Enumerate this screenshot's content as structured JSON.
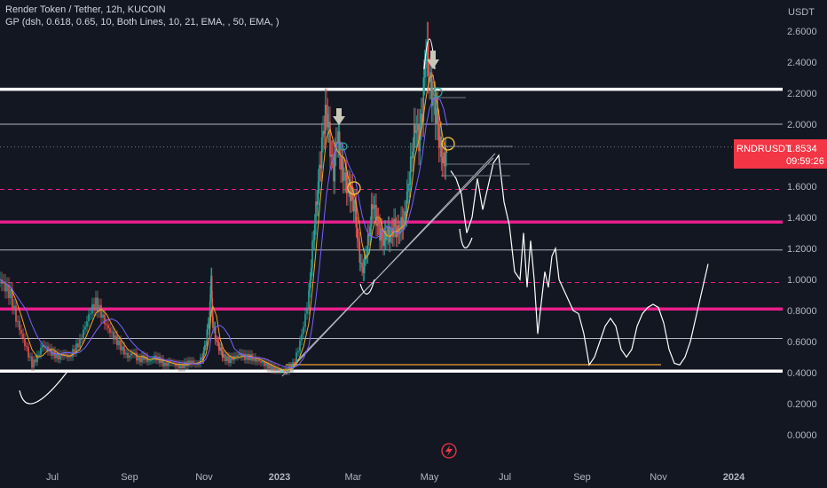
{
  "header": {
    "title": "Render Token / Tether, 12h, KUCOIN",
    "indicator": "GP (dsh, 0.618, 0.65, 10, Both Lines, 10, 21, EMA, , 50, EMA, )"
  },
  "price_axis": {
    "unit": "USDT",
    "ticks": [
      "2.6000",
      "2.4000",
      "2.2000",
      "2.0000",
      "1.8000",
      "1.6000",
      "1.4000",
      "1.2000",
      "1.0000",
      "0.8000",
      "0.6000",
      "0.4000",
      "0.2000",
      "0.0000"
    ]
  },
  "time_axis": {
    "ticks": [
      "Jul",
      "Sep",
      "Nov",
      "2023",
      "Mar",
      "May",
      "Jul",
      "Sep",
      "Nov",
      "2024"
    ]
  },
  "last_price": {
    "symbol": "RNDRUSDT",
    "price": "1.8534",
    "countdown": "09:59:26"
  },
  "colors": {
    "background": "#131722",
    "candle_up": "#26a69a",
    "candle_down": "#ef5350",
    "magenta_line": "#e91e8c",
    "white_line": "#ffffff",
    "price_tag": "#f23645"
  },
  "chart_data": {
    "type": "candlestick",
    "ylim": [
      0,
      2.7
    ],
    "x_ticks": [
      "Jul",
      "Sep",
      "Nov",
      "2023",
      "Mar",
      "May",
      "Jul",
      "Sep",
      "Nov",
      "2024"
    ],
    "horizontal_levels": [
      {
        "value": 2.225,
        "style": "solid",
        "color": "#ffffff",
        "width": "thick"
      },
      {
        "value": 0.41,
        "style": "solid",
        "color": "#ffffff",
        "width": "thick"
      },
      {
        "value": 1.37,
        "style": "solid",
        "color": "#e91e8c",
        "width": "thick"
      },
      {
        "value": 0.81,
        "style": "solid",
        "color": "#e91e8c",
        "width": "thick"
      },
      {
        "value": 1.58,
        "style": "dashed",
        "color": "#e91e8c",
        "width": "thin"
      },
      {
        "value": 0.98,
        "style": "dashed",
        "color": "#e91e8c",
        "width": "thin"
      },
      {
        "value": 2.0,
        "style": "solid",
        "color": "#b2b5be",
        "width": "thin"
      },
      {
        "value": 1.19,
        "style": "solid",
        "color": "#b2b5be",
        "width": "thin"
      },
      {
        "value": 0.62,
        "style": "solid",
        "color": "#b2b5be",
        "width": "thin"
      },
      {
        "value": 1.8534,
        "style": "dotted",
        "color": "#787b86",
        "width": "thin"
      }
    ],
    "price_path": [
      [
        0,
        1.0
      ],
      [
        6,
        0.95
      ],
      [
        12,
        0.9
      ],
      [
        18,
        0.75
      ],
      [
        24,
        0.65
      ],
      [
        30,
        0.55
      ],
      [
        36,
        0.45
      ],
      [
        42,
        0.5
      ],
      [
        48,
        0.58
      ],
      [
        54,
        0.55
      ],
      [
        60,
        0.52
      ],
      [
        66,
        0.5
      ],
      [
        72,
        0.52
      ],
      [
        78,
        0.5
      ],
      [
        84,
        0.55
      ],
      [
        90,
        0.6
      ],
      [
        96,
        0.7
      ],
      [
        102,
        0.8
      ],
      [
        108,
        0.85
      ],
      [
        114,
        0.78
      ],
      [
        120,
        0.7
      ],
      [
        126,
        0.65
      ],
      [
        132,
        0.6
      ],
      [
        138,
        0.55
      ],
      [
        144,
        0.5
      ],
      [
        150,
        0.53
      ],
      [
        156,
        0.48
      ],
      [
        162,
        0.5
      ],
      [
        168,
        0.47
      ],
      [
        174,
        0.5
      ],
      [
        180,
        0.48
      ],
      [
        186,
        0.45
      ],
      [
        192,
        0.47
      ],
      [
        198,
        0.45
      ],
      [
        204,
        0.44
      ],
      [
        210,
        0.46
      ],
      [
        216,
        0.47
      ],
      [
        222,
        0.45
      ],
      [
        228,
        0.5
      ],
      [
        232,
        0.6
      ],
      [
        236,
        0.78
      ],
      [
        238,
        1.0
      ],
      [
        240,
        0.7
      ],
      [
        244,
        0.6
      ],
      [
        248,
        0.55
      ],
      [
        252,
        0.5
      ],
      [
        258,
        0.48
      ],
      [
        264,
        0.5
      ],
      [
        270,
        0.52
      ],
      [
        276,
        0.5
      ],
      [
        282,
        0.5
      ],
      [
        288,
        0.48
      ],
      [
        294,
        0.47
      ],
      [
        300,
        0.45
      ],
      [
        306,
        0.43
      ],
      [
        312,
        0.42
      ],
      [
        318,
        0.41
      ],
      [
        324,
        0.42
      ],
      [
        330,
        0.45
      ],
      [
        336,
        0.55
      ],
      [
        342,
        0.7
      ],
      [
        348,
        0.9
      ],
      [
        352,
        1.2
      ],
      [
        356,
        1.45
      ],
      [
        360,
        1.7
      ],
      [
        364,
        1.95
      ],
      [
        368,
        2.1
      ],
      [
        372,
        1.85
      ],
      [
        376,
        1.7
      ],
      [
        380,
        1.95
      ],
      [
        384,
        1.75
      ],
      [
        388,
        1.65
      ],
      [
        392,
        1.6
      ],
      [
        396,
        1.55
      ],
      [
        400,
        1.45
      ],
      [
        404,
        1.2
      ],
      [
        408,
        1.05
      ],
      [
        412,
        1.15
      ],
      [
        416,
        1.3
      ],
      [
        420,
        1.5
      ],
      [
        424,
        1.4
      ],
      [
        428,
        1.3
      ],
      [
        432,
        1.25
      ],
      [
        436,
        1.3
      ],
      [
        440,
        1.28
      ],
      [
        444,
        1.35
      ],
      [
        448,
        1.3
      ],
      [
        452,
        1.35
      ],
      [
        456,
        1.4
      ],
      [
        460,
        1.6
      ],
      [
        464,
        1.8
      ],
      [
        468,
        2.0
      ],
      [
        472,
        1.9
      ],
      [
        476,
        2.1
      ],
      [
        480,
        2.5
      ],
      [
        484,
        2.3
      ],
      [
        488,
        2.15
      ],
      [
        492,
        2.05
      ],
      [
        496,
        1.85
      ],
      [
        500,
        1.75
      ],
      [
        504,
        1.85
      ]
    ],
    "projection_path": [
      [
        508,
        1.7
      ],
      [
        514,
        1.65
      ],
      [
        520,
        1.55
      ],
      [
        526,
        1.3
      ],
      [
        532,
        1.4
      ],
      [
        538,
        1.65
      ],
      [
        544,
        1.45
      ],
      [
        550,
        1.6
      ],
      [
        556,
        1.75
      ],
      [
        562,
        1.8
      ],
      [
        568,
        1.5
      ],
      [
        574,
        1.35
      ],
      [
        580,
        1.05
      ],
      [
        586,
        1.0
      ],
      [
        590,
        1.3
      ],
      [
        594,
        0.95
      ],
      [
        598,
        1.25
      ],
      [
        602,
        1.0
      ],
      [
        606,
        0.65
      ],
      [
        610,
        0.85
      ],
      [
        614,
        1.05
      ],
      [
        618,
        0.95
      ],
      [
        622,
        1.15
      ],
      [
        626,
        1.2
      ],
      [
        630,
        1.0
      ],
      [
        634,
        0.95
      ],
      [
        638,
        0.9
      ],
      [
        642,
        0.85
      ],
      [
        646,
        0.8
      ],
      [
        652,
        0.78
      ],
      [
        658,
        0.65
      ],
      [
        664,
        0.45
      ],
      [
        670,
        0.5
      ],
      [
        676,
        0.6
      ],
      [
        682,
        0.7
      ],
      [
        688,
        0.75
      ],
      [
        694,
        0.7
      ],
      [
        700,
        0.55
      ],
      [
        706,
        0.5
      ],
      [
        712,
        0.55
      ],
      [
        718,
        0.7
      ],
      [
        724,
        0.78
      ],
      [
        730,
        0.82
      ],
      [
        736,
        0.84
      ],
      [
        742,
        0.82
      ],
      [
        748,
        0.72
      ],
      [
        754,
        0.55
      ],
      [
        760,
        0.46
      ],
      [
        766,
        0.45
      ],
      [
        772,
        0.5
      ],
      [
        778,
        0.6
      ],
      [
        784,
        0.75
      ],
      [
        790,
        0.9
      ],
      [
        798,
        1.1
      ]
    ]
  }
}
